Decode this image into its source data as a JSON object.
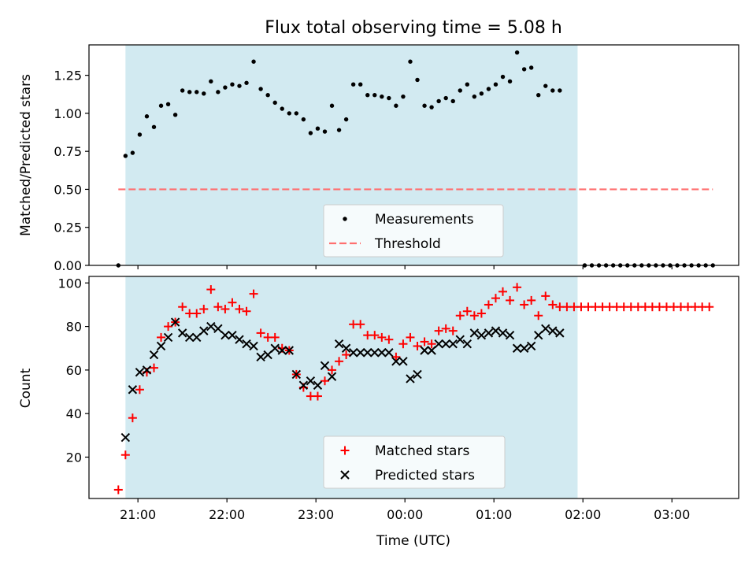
{
  "chart_data": {
    "title": "Flux total observing time = 5.08 h",
    "xlabel": "Time (UTC)",
    "x_unit": "hours relative to 00:00 UTC",
    "xlim": [
      -3.55,
      3.75
    ],
    "xticks": [
      -3,
      -2,
      -1,
      0,
      1,
      2,
      3
    ],
    "xtick_labels": [
      "21:00",
      "22:00",
      "23:00",
      "00:00",
      "01:00",
      "02:00",
      "03:00"
    ],
    "shaded_interval": [
      -3.14,
      1.94
    ],
    "shade_color": "#add8e6",
    "panels": [
      {
        "type": "scatter",
        "ylabel": "Matched/Predicted stars",
        "ylim": [
          0,
          1.45
        ],
        "yticks": [
          0,
          0.25,
          0.5,
          0.75,
          1.0,
          1.25
        ],
        "ytick_labels": [
          "0.00",
          "0.25",
          "0.50",
          "0.75",
          "1.00",
          "1.25"
        ],
        "legend_position": "lower-center",
        "series": [
          {
            "name": "Measurements",
            "marker": "dot",
            "color": "#000000",
            "points": [
              [
                -3.22,
                0.0
              ],
              [
                -3.14,
                0.72
              ],
              [
                -3.06,
                0.74
              ],
              [
                -2.98,
                0.86
              ],
              [
                -2.9,
                0.98
              ],
              [
                -2.82,
                0.91
              ],
              [
                -2.74,
                1.05
              ],
              [
                -2.66,
                1.06
              ],
              [
                -2.58,
                0.99
              ],
              [
                -2.5,
                1.15
              ],
              [
                -2.42,
                1.14
              ],
              [
                -2.34,
                1.14
              ],
              [
                -2.26,
                1.13
              ],
              [
                -2.18,
                1.21
              ],
              [
                -2.1,
                1.14
              ],
              [
                -2.02,
                1.17
              ],
              [
                -1.94,
                1.19
              ],
              [
                -1.86,
                1.18
              ],
              [
                -1.78,
                1.2
              ],
              [
                -1.7,
                1.34
              ],
              [
                -1.62,
                1.16
              ],
              [
                -1.54,
                1.12
              ],
              [
                -1.46,
                1.07
              ],
              [
                -1.38,
                1.03
              ],
              [
                -1.3,
                1.0
              ],
              [
                -1.22,
                1.0
              ],
              [
                -1.14,
                0.96
              ],
              [
                -1.06,
                0.87
              ],
              [
                -0.98,
                0.9
              ],
              [
                -0.9,
                0.88
              ],
              [
                -0.82,
                1.05
              ],
              [
                -0.74,
                0.89
              ],
              [
                -0.66,
                0.96
              ],
              [
                -0.58,
                1.19
              ],
              [
                -0.5,
                1.19
              ],
              [
                -0.42,
                1.12
              ],
              [
                -0.34,
                1.12
              ],
              [
                -0.26,
                1.11
              ],
              [
                -0.18,
                1.1
              ],
              [
                -0.1,
                1.05
              ],
              [
                -0.02,
                1.11
              ],
              [
                0.06,
                1.34
              ],
              [
                0.14,
                1.22
              ],
              [
                0.22,
                1.05
              ],
              [
                0.3,
                1.04
              ],
              [
                0.38,
                1.08
              ],
              [
                0.46,
                1.1
              ],
              [
                0.54,
                1.08
              ],
              [
                0.62,
                1.15
              ],
              [
                0.7,
                1.19
              ],
              [
                0.78,
                1.11
              ],
              [
                0.86,
                1.13
              ],
              [
                0.94,
                1.16
              ],
              [
                1.02,
                1.19
              ],
              [
                1.1,
                1.24
              ],
              [
                1.18,
                1.21
              ],
              [
                1.26,
                1.4
              ],
              [
                1.34,
                1.29
              ],
              [
                1.42,
                1.3
              ],
              [
                1.5,
                1.12
              ],
              [
                1.58,
                1.18
              ],
              [
                1.66,
                1.15
              ],
              [
                1.74,
                1.15
              ],
              [
                2.02,
                0.0
              ],
              [
                2.1,
                0.0
              ],
              [
                2.18,
                0.0
              ],
              [
                2.26,
                0.0
              ],
              [
                2.34,
                0.0
              ],
              [
                2.42,
                0.0
              ],
              [
                2.5,
                0.0
              ],
              [
                2.58,
                0.0
              ],
              [
                2.66,
                0.0
              ],
              [
                2.74,
                0.0
              ],
              [
                2.82,
                0.0
              ],
              [
                2.9,
                0.0
              ],
              [
                2.98,
                0.0
              ],
              [
                3.06,
                0.0
              ],
              [
                3.14,
                0.0
              ],
              [
                3.22,
                0.0
              ],
              [
                3.3,
                0.0
              ],
              [
                3.38,
                0.0
              ],
              [
                3.46,
                0.0
              ]
            ]
          },
          {
            "name": "Threshold",
            "marker": "dashed-line",
            "color": "#ff6f6f",
            "points": [
              [
                -3.22,
                0.5
              ],
              [
                3.46,
                0.5
              ]
            ]
          }
        ]
      },
      {
        "type": "scatter",
        "ylabel": "Count",
        "ylim": [
          1,
          103
        ],
        "yticks": [
          20,
          40,
          60,
          80,
          100
        ],
        "ytick_labels": [
          "20",
          "40",
          "60",
          "80",
          "100"
        ],
        "legend_position": "lower-center",
        "series": [
          {
            "name": "Matched stars",
            "marker": "plus",
            "color": "#ff0000",
            "points": [
              [
                -3.22,
                5
              ],
              [
                -3.14,
                21
              ],
              [
                -3.06,
                38
              ],
              [
                -2.98,
                51
              ],
              [
                -2.9,
                59
              ],
              [
                -2.82,
                61
              ],
              [
                -2.74,
                75
              ],
              [
                -2.66,
                80
              ],
              [
                -2.58,
                82
              ],
              [
                -2.5,
                89
              ],
              [
                -2.42,
                86
              ],
              [
                -2.34,
                86
              ],
              [
                -2.26,
                88
              ],
              [
                -2.18,
                97
              ],
              [
                -2.1,
                89
              ],
              [
                -2.02,
                88
              ],
              [
                -1.94,
                91
              ],
              [
                -1.86,
                88
              ],
              [
                -1.78,
                87
              ],
              [
                -1.7,
                95
              ],
              [
                -1.62,
                77
              ],
              [
                -1.54,
                75
              ],
              [
                -1.46,
                75
              ],
              [
                -1.38,
                70
              ],
              [
                -1.3,
                69
              ],
              [
                -1.22,
                58
              ],
              [
                -1.14,
                52
              ],
              [
                -1.06,
                48
              ],
              [
                -0.98,
                48
              ],
              [
                -0.9,
                55
              ],
              [
                -0.82,
                60
              ],
              [
                -0.74,
                64
              ],
              [
                -0.66,
                67
              ],
              [
                -0.58,
                81
              ],
              [
                -0.5,
                81
              ],
              [
                -0.42,
                76
              ],
              [
                -0.34,
                76
              ],
              [
                -0.26,
                75
              ],
              [
                -0.18,
                74
              ],
              [
                -0.1,
                66
              ],
              [
                -0.02,
                72
              ],
              [
                0.06,
                75
              ],
              [
                0.14,
                71
              ],
              [
                0.22,
                73
              ],
              [
                0.3,
                72
              ],
              [
                0.38,
                78
              ],
              [
                0.46,
                79
              ],
              [
                0.54,
                78
              ],
              [
                0.62,
                85
              ],
              [
                0.7,
                87
              ],
              [
                0.78,
                85
              ],
              [
                0.86,
                86
              ],
              [
                0.94,
                90
              ],
              [
                1.02,
                93
              ],
              [
                1.1,
                96
              ],
              [
                1.18,
                92
              ],
              [
                1.26,
                98
              ],
              [
                1.34,
                90
              ],
              [
                1.42,
                92
              ],
              [
                1.5,
                85
              ],
              [
                1.58,
                94
              ],
              [
                1.66,
                90
              ],
              [
                1.74,
                89
              ],
              [
                1.82,
                89
              ],
              [
                1.9,
                89
              ],
              [
                1.98,
                89
              ],
              [
                2.06,
                89
              ],
              [
                2.14,
                89
              ],
              [
                2.22,
                89
              ],
              [
                2.3,
                89
              ],
              [
                2.38,
                89
              ],
              [
                2.46,
                89
              ],
              [
                2.54,
                89
              ],
              [
                2.62,
                89
              ],
              [
                2.7,
                89
              ],
              [
                2.78,
                89
              ],
              [
                2.86,
                89
              ],
              [
                2.94,
                89
              ],
              [
                3.02,
                89
              ],
              [
                3.1,
                89
              ],
              [
                3.18,
                89
              ],
              [
                3.26,
                89
              ],
              [
                3.34,
                89
              ],
              [
                3.42,
                89
              ]
            ]
          },
          {
            "name": "Predicted stars",
            "marker": "x",
            "color": "#000000",
            "points": [
              [
                -3.14,
                29
              ],
              [
                -3.06,
                51
              ],
              [
                -2.98,
                59
              ],
              [
                -2.9,
                60
              ],
              [
                -2.82,
                67
              ],
              [
                -2.74,
                71
              ],
              [
                -2.66,
                75
              ],
              [
                -2.58,
                82
              ],
              [
                -2.5,
                77
              ],
              [
                -2.42,
                75
              ],
              [
                -2.34,
                75
              ],
              [
                -2.26,
                78
              ],
              [
                -2.18,
                80
              ],
              [
                -2.1,
                79
              ],
              [
                -2.02,
                76
              ],
              [
                -1.94,
                76
              ],
              [
                -1.86,
                74
              ],
              [
                -1.78,
                72
              ],
              [
                -1.7,
                71
              ],
              [
                -1.62,
                66
              ],
              [
                -1.54,
                67
              ],
              [
                -1.46,
                70
              ],
              [
                -1.38,
                69
              ],
              [
                -1.3,
                69
              ],
              [
                -1.22,
                58
              ],
              [
                -1.14,
                53
              ],
              [
                -1.06,
                55
              ],
              [
                -0.98,
                53
              ],
              [
                -0.9,
                62
              ],
              [
                -0.82,
                57
              ],
              [
                -0.74,
                72
              ],
              [
                -0.66,
                70
              ],
              [
                -0.58,
                68
              ],
              [
                -0.5,
                68
              ],
              [
                -0.42,
                68
              ],
              [
                -0.34,
                68
              ],
              [
                -0.26,
                68
              ],
              [
                -0.18,
                68
              ],
              [
                -0.1,
                64
              ],
              [
                -0.02,
                64
              ],
              [
                0.06,
                56
              ],
              [
                0.14,
                58
              ],
              [
                0.22,
                69
              ],
              [
                0.3,
                69
              ],
              [
                0.38,
                72
              ],
              [
                0.46,
                72
              ],
              [
                0.54,
                72
              ],
              [
                0.62,
                74
              ],
              [
                0.7,
                72
              ],
              [
                0.78,
                77
              ],
              [
                0.86,
                76
              ],
              [
                0.94,
                77
              ],
              [
                1.02,
                78
              ],
              [
                1.1,
                77
              ],
              [
                1.18,
                76
              ],
              [
                1.26,
                70
              ],
              [
                1.34,
                70
              ],
              [
                1.42,
                71
              ],
              [
                1.5,
                76
              ],
              [
                1.58,
                79
              ],
              [
                1.66,
                78
              ],
              [
                1.74,
                77
              ]
            ]
          }
        ]
      }
    ]
  }
}
